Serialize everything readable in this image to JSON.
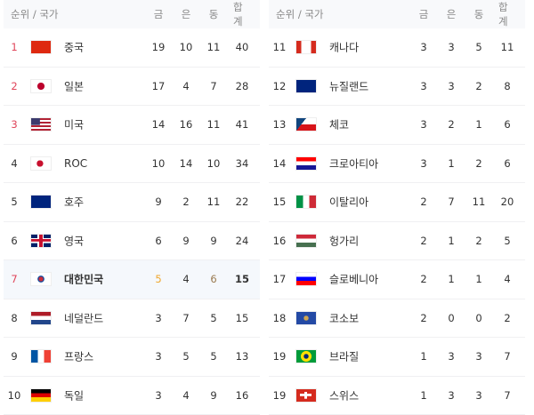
{
  "header": {
    "rank_country": "순위 / 국가",
    "gold": "금",
    "silver": "은",
    "bronze": "동",
    "total": "합계"
  },
  "colors": {
    "top_rank": "#e0455a",
    "gold_highlight": "#f0a830",
    "highlight_row": "#f5f8fc"
  },
  "left": [
    {
      "rank": "1",
      "name": "중국",
      "flag": "china",
      "gold": "19",
      "silver": "10",
      "bronze": "11",
      "total": "40"
    },
    {
      "rank": "2",
      "name": "일본",
      "flag": "japan",
      "gold": "17",
      "silver": "4",
      "bronze": "7",
      "total": "28"
    },
    {
      "rank": "3",
      "name": "미국",
      "flag": "usa",
      "gold": "14",
      "silver": "16",
      "bronze": "11",
      "total": "41"
    },
    {
      "rank": "4",
      "name": "ROC",
      "flag": "roc",
      "gold": "10",
      "silver": "14",
      "bronze": "10",
      "total": "34"
    },
    {
      "rank": "5",
      "name": "호주",
      "flag": "australia",
      "gold": "9",
      "silver": "2",
      "bronze": "11",
      "total": "22"
    },
    {
      "rank": "6",
      "name": "영국",
      "flag": "uk",
      "gold": "6",
      "silver": "9",
      "bronze": "9",
      "total": "24"
    },
    {
      "rank": "7",
      "name": "대한민국",
      "flag": "korea",
      "gold": "5",
      "silver": "4",
      "bronze": "6",
      "total": "15"
    },
    {
      "rank": "8",
      "name": "네덜란드",
      "flag": "netherlands",
      "gold": "3",
      "silver": "7",
      "bronze": "5",
      "total": "15"
    },
    {
      "rank": "9",
      "name": "프랑스",
      "flag": "france",
      "gold": "3",
      "silver": "5",
      "bronze": "5",
      "total": "13"
    },
    {
      "rank": "10",
      "name": "독일",
      "flag": "germany",
      "gold": "3",
      "silver": "4",
      "bronze": "9",
      "total": "16"
    }
  ],
  "right": [
    {
      "rank": "11",
      "name": "캐나다",
      "flag": "canada",
      "gold": "3",
      "silver": "3",
      "bronze": "5",
      "total": "11"
    },
    {
      "rank": "12",
      "name": "뉴질랜드",
      "flag": "new-zealand",
      "gold": "3",
      "silver": "3",
      "bronze": "2",
      "total": "8"
    },
    {
      "rank": "13",
      "name": "체코",
      "flag": "czech",
      "gold": "3",
      "silver": "2",
      "bronze": "1",
      "total": "6"
    },
    {
      "rank": "14",
      "name": "크로아티아",
      "flag": "croatia",
      "gold": "3",
      "silver": "1",
      "bronze": "2",
      "total": "6"
    },
    {
      "rank": "15",
      "name": "이탈리아",
      "flag": "italy",
      "gold": "2",
      "silver": "7",
      "bronze": "11",
      "total": "20"
    },
    {
      "rank": "16",
      "name": "헝가리",
      "flag": "hungary",
      "gold": "2",
      "silver": "1",
      "bronze": "2",
      "total": "5"
    },
    {
      "rank": "17",
      "name": "슬로베니아",
      "flag": "slovenia",
      "gold": "2",
      "silver": "1",
      "bronze": "1",
      "total": "4"
    },
    {
      "rank": "18",
      "name": "코소보",
      "flag": "kosovo",
      "gold": "2",
      "silver": "0",
      "bronze": "0",
      "total": "2"
    },
    {
      "rank": "19",
      "name": "브라질",
      "flag": "brazil",
      "gold": "1",
      "silver": "3",
      "bronze": "3",
      "total": "7"
    },
    {
      "rank": "19",
      "name": "스위스",
      "flag": "switzerland",
      "gold": "1",
      "silver": "3",
      "bronze": "3",
      "total": "7"
    }
  ]
}
